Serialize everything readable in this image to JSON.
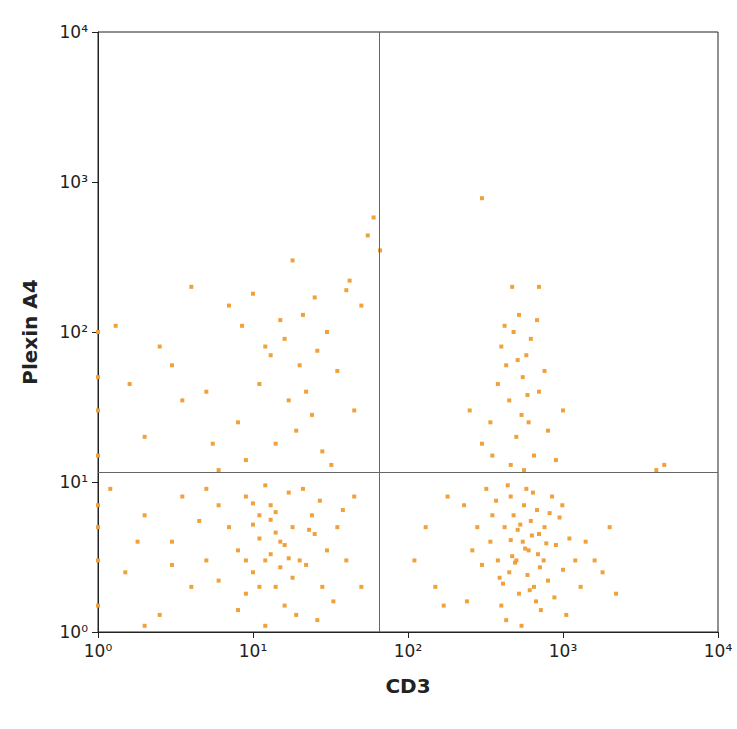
{
  "chart_data": {
    "type": "scatter",
    "x_label": "CD3",
    "y_label": "Plexin A4",
    "log": true,
    "grid": false,
    "color": "#f0a13c",
    "marker": "square",
    "xlim": [
      1,
      10000
    ],
    "ylim": [
      1,
      10000
    ],
    "xticks": [
      {
        "value": 1,
        "label": "10⁰"
      },
      {
        "value": 10,
        "label": "10¹"
      },
      {
        "value": 100,
        "label": "10²"
      },
      {
        "value": 1000,
        "label": "10³"
      },
      {
        "value": 10000,
        "label": "10⁴"
      }
    ],
    "yticks": [
      {
        "value": 1,
        "label": "10⁰"
      },
      {
        "value": 10,
        "label": "10¹"
      },
      {
        "value": 100,
        "label": "10²"
      },
      {
        "value": 1000,
        "label": "10³"
      },
      {
        "value": 10000,
        "label": "10⁴"
      }
    ],
    "quadrant_x": 65,
    "quadrant_y": 11.7,
    "points": [
      [
        500,
        3
      ],
      [
        450,
        2.5
      ],
      [
        550,
        4
      ],
      [
        600,
        3.5
      ],
      [
        420,
        5
      ],
      [
        380,
        3
      ],
      [
        650,
        2
      ],
      [
        700,
        4.5
      ],
      [
        480,
        6
      ],
      [
        520,
        1.8
      ],
      [
        560,
        7
      ],
      [
        400,
        1.5
      ],
      [
        620,
        5.5
      ],
      [
        340,
        4
      ],
      [
        750,
        3
      ],
      [
        800,
        2.2
      ],
      [
        460,
        8
      ],
      [
        580,
        9
      ],
      [
        300,
        2.8
      ],
      [
        900,
        3.8
      ],
      [
        1000,
        2.6
      ],
      [
        1100,
        4.2
      ],
      [
        260,
        3.5
      ],
      [
        240,
        1.6
      ],
      [
        680,
        6.5
      ],
      [
        720,
        1.4
      ],
      [
        350,
        6
      ],
      [
        430,
        1.2
      ],
      [
        510,
        4.8
      ],
      [
        590,
        2.4
      ],
      [
        640,
        8.5
      ],
      [
        370,
        7.5
      ],
      [
        470,
        3.2
      ],
      [
        530,
        5.2
      ],
      [
        610,
        1.9
      ],
      [
        690,
        3.3
      ],
      [
        760,
        5
      ],
      [
        820,
        6.2
      ],
      [
        880,
        1.7
      ],
      [
        950,
        5.8
      ],
      [
        1200,
        3
      ],
      [
        1300,
        2
      ],
      [
        1400,
        4
      ],
      [
        320,
        9
      ],
      [
        280,
        5
      ],
      [
        230,
        7
      ],
      [
        440,
        9.5
      ],
      [
        850,
        8
      ],
      [
        990,
        7
      ],
      [
        1050,
        1.3
      ],
      [
        410,
        2.1
      ],
      [
        490,
        2.9
      ],
      [
        570,
        3.6
      ],
      [
        630,
        4.4
      ],
      [
        710,
        2.7
      ],
      [
        780,
        3.9
      ],
      [
        540,
        1.1
      ],
      [
        460,
        4.1
      ],
      [
        390,
        2.3
      ],
      [
        670,
        1.6
      ],
      [
        150,
        2
      ],
      [
        130,
        5
      ],
      [
        180,
        8
      ],
      [
        110,
        3
      ],
      [
        170,
        1.5
      ],
      [
        1600,
        3
      ],
      [
        1800,
        2.5
      ],
      [
        2000,
        5
      ],
      [
        2200,
        1.8
      ],
      [
        12,
        3
      ],
      [
        10,
        2.5
      ],
      [
        15,
        4
      ],
      [
        8,
        3.5
      ],
      [
        14,
        2
      ],
      [
        18,
        5
      ],
      [
        11,
        6
      ],
      [
        9,
        1.8
      ],
      [
        20,
        3
      ],
      [
        25,
        4.5
      ],
      [
        6,
        2.2
      ],
      [
        13,
        7
      ],
      [
        16,
        1.5
      ],
      [
        22,
        2.8
      ],
      [
        30,
        3.5
      ],
      [
        7,
        5
      ],
      [
        5,
        3
      ],
      [
        4,
        2
      ],
      [
        3,
        4
      ],
      [
        2,
        6
      ],
      [
        1.5,
        2.5
      ],
      [
        1,
        3
      ],
      [
        1,
        1.5
      ],
      [
        1,
        7
      ],
      [
        1,
        5
      ],
      [
        1.2,
        9
      ],
      [
        2.5,
        1.3
      ],
      [
        3.5,
        8
      ],
      [
        4.5,
        5.5
      ],
      [
        17,
        8.5
      ],
      [
        19,
        1.3
      ],
      [
        24,
        6
      ],
      [
        28,
        2
      ],
      [
        35,
        5
      ],
      [
        40,
        3
      ],
      [
        45,
        8
      ],
      [
        33,
        1.6
      ],
      [
        27,
        7.5
      ],
      [
        21,
        9
      ],
      [
        12,
        9.5
      ],
      [
        9,
        8
      ],
      [
        11,
        4.2
      ],
      [
        13,
        3.3
      ],
      [
        15,
        2.7
      ],
      [
        10,
        5.2
      ],
      [
        14,
        6.3
      ],
      [
        8,
        1.4
      ],
      [
        6,
        7
      ],
      [
        5,
        9
      ],
      [
        3,
        2.8
      ],
      [
        2,
        1.1
      ],
      [
        1.8,
        4
      ],
      [
        50,
        2
      ],
      [
        38,
        6.5
      ],
      [
        12,
        1.1
      ],
      [
        16,
        3.8
      ],
      [
        18,
        2.3
      ],
      [
        23,
        4.8
      ],
      [
        26,
        1.2
      ],
      [
        9,
        3
      ],
      [
        11,
        2
      ],
      [
        14,
        4.6
      ],
      [
        17,
        3.1
      ],
      [
        13,
        5.6
      ],
      [
        10,
        7.2
      ],
      [
        1,
        100
      ],
      [
        1,
        30
      ],
      [
        1,
        15
      ],
      [
        1,
        50
      ],
      [
        1.3,
        110
      ],
      [
        2,
        20
      ],
      [
        3,
        60
      ],
      [
        4,
        200
      ],
      [
        5,
        40
      ],
      [
        7,
        150
      ],
      [
        8,
        25
      ],
      [
        10,
        180
      ],
      [
        12,
        80
      ],
      [
        15,
        120
      ],
      [
        18,
        300
      ],
      [
        20,
        60
      ],
      [
        22,
        40
      ],
      [
        25,
        170
      ],
      [
        30,
        100
      ],
      [
        35,
        55
      ],
      [
        40,
        190
      ],
      [
        45,
        30
      ],
      [
        2.5,
        80
      ],
      [
        6,
        12
      ],
      [
        9,
        14
      ],
      [
        14,
        18
      ],
      [
        17,
        35
      ],
      [
        11,
        45
      ],
      [
        13,
        70
      ],
      [
        16,
        90
      ],
      [
        19,
        22
      ],
      [
        24,
        28
      ],
      [
        28,
        16
      ],
      [
        32,
        13
      ],
      [
        3.5,
        35
      ],
      [
        5.5,
        18
      ],
      [
        1.6,
        45
      ],
      [
        8.5,
        110
      ],
      [
        50,
        150
      ],
      [
        60,
        580
      ],
      [
        66,
        350
      ],
      [
        55,
        440
      ],
      [
        42,
        220
      ],
      [
        21,
        130
      ],
      [
        26,
        75
      ],
      [
        500,
        20
      ],
      [
        450,
        35
      ],
      [
        550,
        50
      ],
      [
        400,
        80
      ],
      [
        600,
        25
      ],
      [
        350,
        15
      ],
      [
        700,
        40
      ],
      [
        480,
        100
      ],
      [
        520,
        130
      ],
      [
        430,
        60
      ],
      [
        580,
        70
      ],
      [
        650,
        15
      ],
      [
        380,
        45
      ],
      [
        460,
        13
      ],
      [
        540,
        28
      ],
      [
        620,
        90
      ],
      [
        300,
        18
      ],
      [
        800,
        22
      ],
      [
        900,
        14
      ],
      [
        1000,
        30
      ],
      [
        420,
        110
      ],
      [
        560,
        12
      ],
      [
        510,
        65
      ],
      [
        470,
        200
      ],
      [
        700,
        200
      ],
      [
        250,
        30
      ],
      [
        760,
        55
      ],
      [
        340,
        25
      ],
      [
        680,
        120
      ],
      [
        590,
        38
      ],
      [
        300,
        780
      ],
      [
        4500,
        13
      ],
      [
        4000,
        12
      ]
    ]
  }
}
